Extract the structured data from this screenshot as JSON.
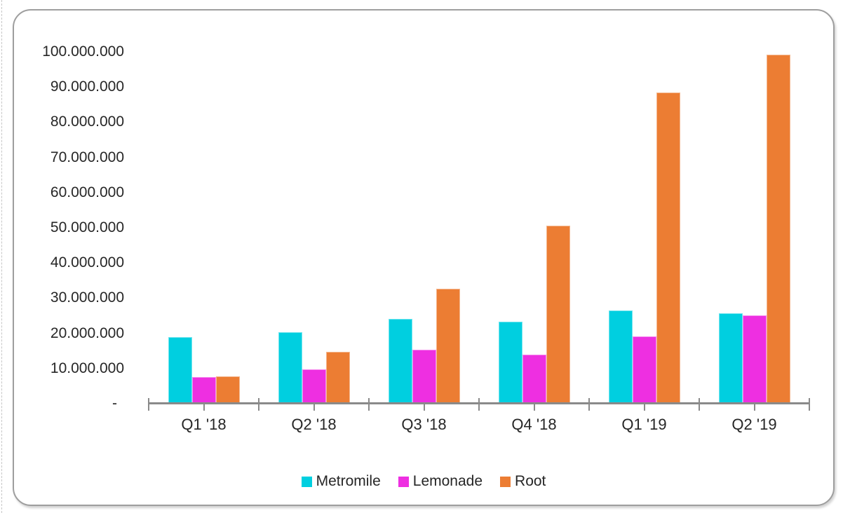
{
  "frame": {
    "background": "#ffffff",
    "border_color": "#9e9e9e"
  },
  "colors": {
    "axis": "#8a8a8a",
    "text": "#262626",
    "metromile": "#00CFE0",
    "lemonade": "#EE2FE1",
    "root": "#EC7D33"
  },
  "chart_data": {
    "type": "bar",
    "title": "",
    "xlabel": "",
    "ylabel": "",
    "grid": false,
    "legend_position": "bottom",
    "ylim": [
      0,
      100000000
    ],
    "y_tick_step": 10000000,
    "y_tick_labels": [
      "100.000.000",
      "90.000.000",
      "80.000.000",
      "70.000.000",
      "60.000.000",
      "50.000.000",
      "40.000.000",
      "30.000.000",
      "20.000.000",
      "10.000.000",
      "-"
    ],
    "categories": [
      "Q1 '18",
      "Q2 '18",
      "Q3 '18",
      "Q4 '18",
      "Q1 '19",
      "Q2 '19"
    ],
    "series": [
      {
        "name": "Metromile",
        "color": "#00CFE0",
        "values": [
          19000000,
          20300000,
          24200000,
          23300000,
          26600000,
          25800000
        ]
      },
      {
        "name": "Lemonade",
        "color": "#EE2FE1",
        "values": [
          7500000,
          9800000,
          15400000,
          14000000,
          19200000,
          25200000
        ]
      },
      {
        "name": "Root",
        "color": "#EC7D33",
        "values": [
          7700000,
          14700000,
          32700000,
          50700000,
          88500000,
          99300000
        ]
      }
    ]
  }
}
